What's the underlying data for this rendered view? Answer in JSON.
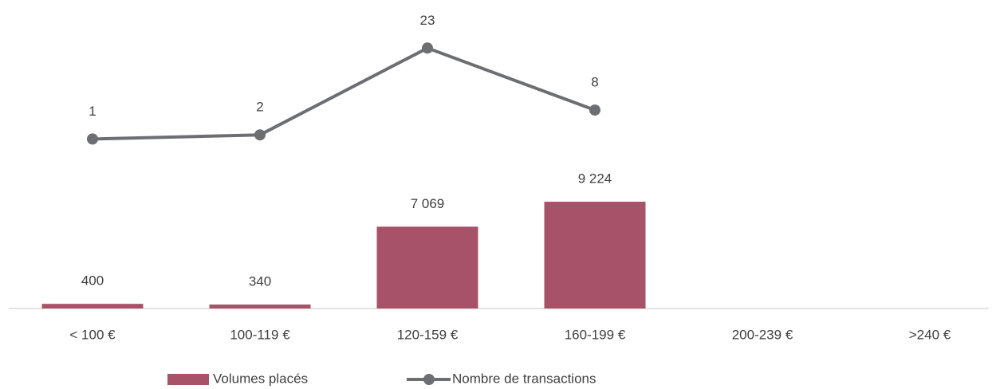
{
  "chart_data": {
    "type": "bar_line",
    "categories": [
      "< 100 €",
      "100-119 €",
      "120-159 €",
      "160-199 €",
      "200-239 €",
      ">240 €"
    ],
    "series": [
      {
        "name": "Volumes placés",
        "type": "bar",
        "color": "#a8526a",
        "values": [
          400,
          340,
          7069,
          9224,
          null,
          null
        ],
        "value_labels": [
          "400",
          "340",
          "7 069",
          "9 224",
          null,
          null
        ]
      },
      {
        "name": "Nombre de transactions",
        "type": "line",
        "axis": "y2",
        "color": "#6d6e71",
        "values": [
          1,
          2,
          23,
          8,
          null,
          null
        ]
      }
    ],
    "ylim": [
      0,
      25000
    ],
    "y2lim": [
      -40,
      30
    ],
    "legend": "bottom"
  }
}
